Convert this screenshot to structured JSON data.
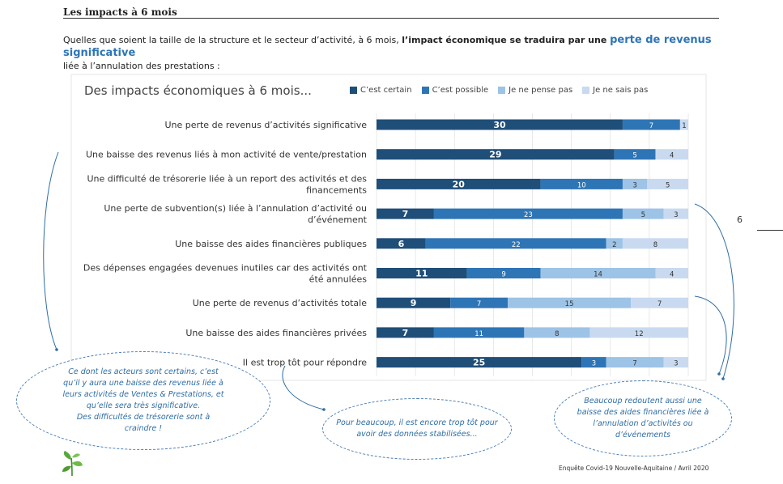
{
  "section_title": "Les impacts à 6 mois",
  "intro": {
    "part1": "Quelles que soient la taille de la structure et le secteur d’activité, à 6 mois, ",
    "bold": "l’impact économique se traduira par une ",
    "highlight": "perte de revenus significative",
    "part2": "liée à l’annulation des prestations :"
  },
  "chart_data": {
    "type": "bar",
    "orientation": "horizontal",
    "stacked": true,
    "title": "Des impacts économiques à 6 mois...",
    "legend_position": "top",
    "categories": [
      "Une perte de revenus d’activités significative",
      "Une baisse des revenus liés à mon activité de vente/prestation",
      "Une difficulté de trésorerie liée à un report des activités et des financements",
      "Une perte de subvention(s) liée à l’annulation d’activité ou d’événement",
      "Une baisse des aides financières publiques",
      "Des dépenses engagées devenues inutiles car des activités ont été annulées",
      "Une perte de revenus d’activités totale",
      "Une baisse des aides financières privées",
      "Il est trop tôt pour répondre"
    ],
    "category_lines": [
      [
        "Une perte de revenus d’activités significative"
      ],
      [
        "Une baisse des revenus liés à mon activité de vente/prestation"
      ],
      [
        "Une difficulté de trésorerie liée à un report des activités et des",
        "financements"
      ],
      [
        "Une perte de subvention(s) liée à l’annulation d’activité ou",
        "d’événement"
      ],
      [
        "Une baisse des aides financières publiques"
      ],
      [
        "Des dépenses engagées devenues inutiles car des activités ont",
        "été annulées"
      ],
      [
        "Une perte de revenus d’activités totale"
      ],
      [
        "Une baisse des aides financières privées"
      ],
      [
        "Il est trop tôt pour répondre"
      ]
    ],
    "series": [
      {
        "name": "C’est certain",
        "color": "#1f4e79",
        "values": [
          30,
          29,
          20,
          7,
          6,
          11,
          9,
          7,
          25
        ]
      },
      {
        "name": "C’est possible",
        "color": "#2e75b6",
        "values": [
          7,
          5,
          10,
          23,
          22,
          9,
          7,
          11,
          3
        ]
      },
      {
        "name": "Je ne pense pas",
        "color": "#9dc3e6",
        "values": [
          0,
          0,
          3,
          5,
          2,
          14,
          15,
          8,
          7
        ]
      },
      {
        "name": "Je ne sais pas",
        "color": "#c9daf0",
        "values": [
          1,
          4,
          5,
          3,
          8,
          4,
          7,
          12,
          3
        ]
      }
    ],
    "grid": true
  },
  "callouts": {
    "left": [
      "Ce dont les acteurs sont certains, c’est",
      "qu’il y aura une baisse des revenus liée à",
      "leurs activités de Ventes & Prestations, et",
      "qu’elle sera très significative.",
      "Des difficultés de trésorerie sont à",
      "craindre !"
    ],
    "middle": [
      "Pour beaucoup, il est encore trop tôt pour",
      "avoir des données stabilisées..."
    ],
    "right": [
      "Beaucoup redoutent aussi une",
      "baisse des aides financières liée à",
      "l’annulation d’activités ou",
      "d’événements"
    ]
  },
  "page_number": "6",
  "footer_source": "Enquête Covid-19 Nouvelle-Aquitaine / Avril 2020",
  "logo_icon": "leaf-logo-icon"
}
